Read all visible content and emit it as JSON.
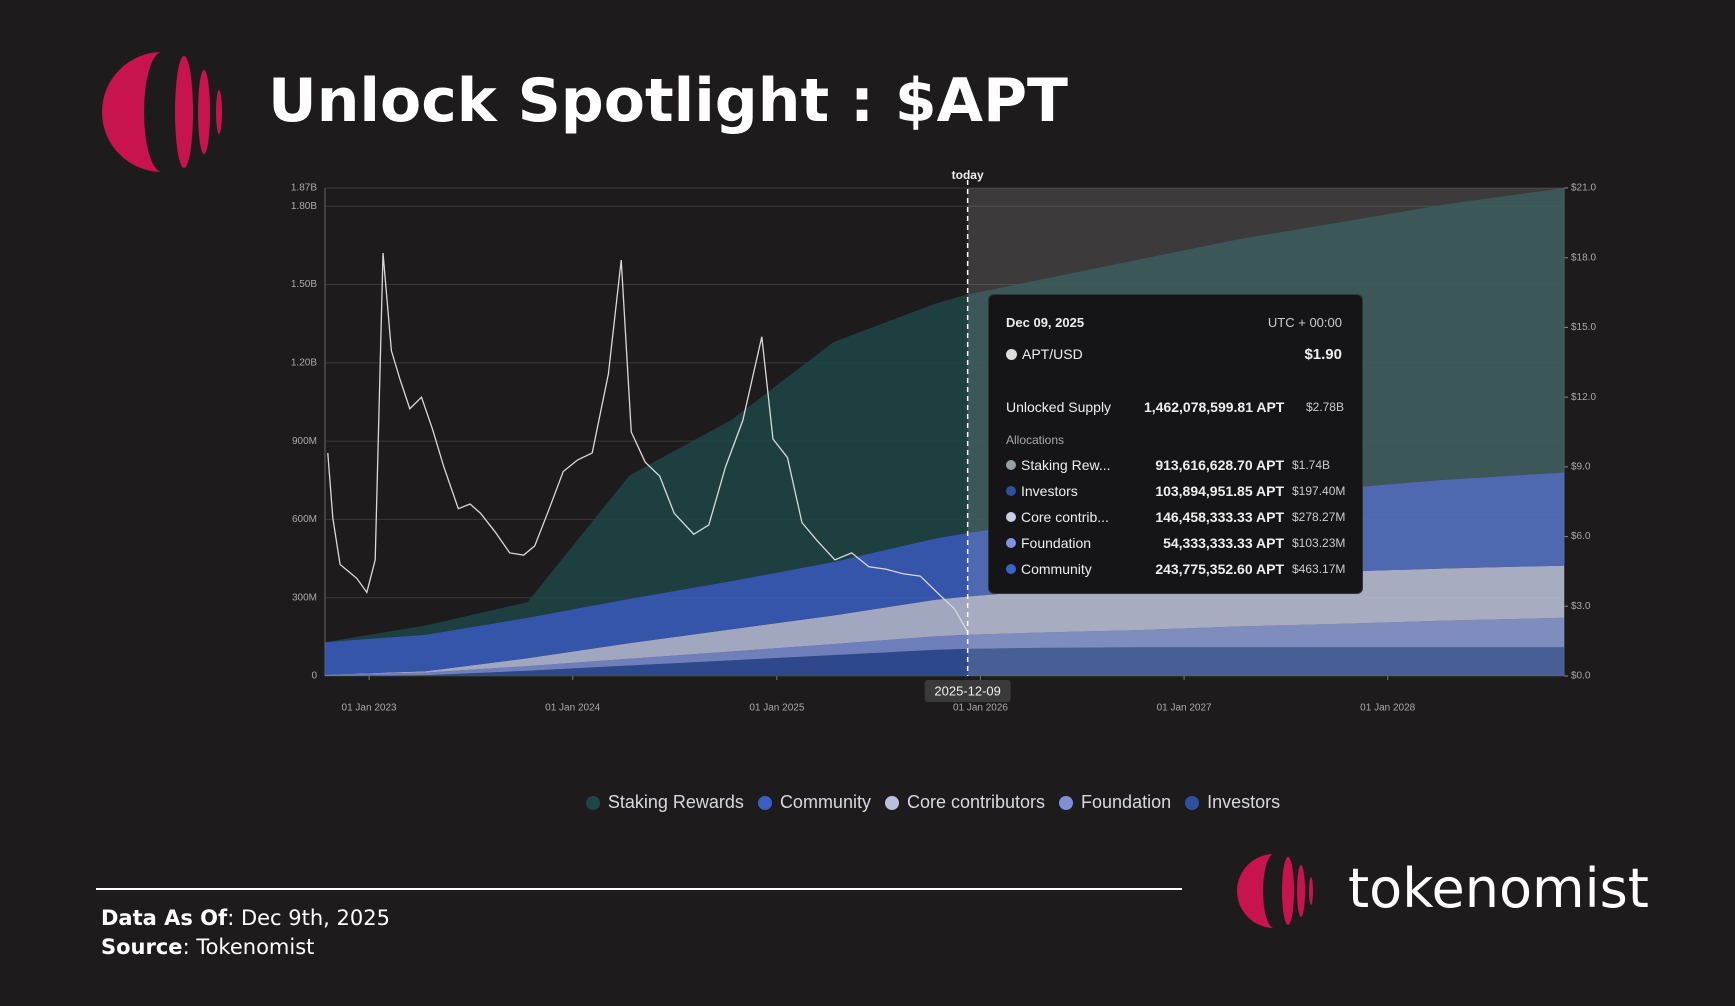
{
  "header": {
    "title": "Unlock Spotlight : $APT"
  },
  "chart_data": {
    "type": "stacked_area",
    "x": [
      "2022-10-14",
      "2023-04-12",
      "2023-10-12",
      "2024-04-12",
      "2024-10-12",
      "2025-04-12",
      "2025-10-12",
      "2025-12-09",
      "2026-04-12",
      "2026-10-12",
      "2027-04-12",
      "2027-10-12",
      "2028-04-12",
      "2028-11-12"
    ],
    "series": [
      {
        "name": "Staking Rewards",
        "color": "#1f4547",
        "values": [
          0,
          35000000,
          60000000,
          473000000,
          618000000,
          842000000,
          900000000,
          913616628.7,
          930000000,
          960000000,
          990000000,
          1020000000,
          1055000000,
          1090000000
        ]
      },
      {
        "name": "Community",
        "color": "#3a5fc4",
        "values": [
          125000000,
          140000000,
          155000000,
          170000000,
          185000000,
          205000000,
          235000000,
          243775352.6,
          260000000,
          280000000,
          300000000,
          320000000,
          340000000,
          357000000
        ]
      },
      {
        "name": "Core contributors",
        "color": "#b9bfdc",
        "values": [
          0,
          5000000,
          30000000,
          60000000,
          85000000,
          110000000,
          140000000,
          146458333.33,
          160000000,
          180000000,
          195000000,
          200000000,
          200000000,
          200000000
        ]
      },
      {
        "name": "Foundation",
        "color": "#7d90d8",
        "values": [
          5000000,
          10000000,
          18000000,
          26000000,
          34000000,
          42000000,
          52000000,
          54333333.33,
          58000000,
          66000000,
          80000000,
          90000000,
          102000000,
          113000000
        ]
      },
      {
        "name": "Investors",
        "color": "#30509f",
        "values": [
          0,
          3000000,
          20000000,
          40000000,
          60000000,
          80000000,
          100000000,
          103894951.85,
          108000000,
          110000000,
          110000000,
          110000000,
          110000000,
          110000000
        ]
      }
    ],
    "price": {
      "name": "APT/USD",
      "color": "#d9d9d9",
      "axis": "y2",
      "x": [
        "2022-10-19",
        "2022-10-28",
        "2022-11-10",
        "2022-11-25",
        "2022-12-10",
        "2022-12-28",
        "2023-01-12",
        "2023-01-26",
        "2023-02-10",
        "2023-02-25",
        "2023-03-15",
        "2023-04-05",
        "2023-04-25",
        "2023-05-15",
        "2023-06-10",
        "2023-07-01",
        "2023-07-20",
        "2023-08-15",
        "2023-09-10",
        "2023-10-05",
        "2023-10-25",
        "2023-11-20",
        "2023-12-15",
        "2024-01-10",
        "2024-02-05",
        "2024-03-05",
        "2024-03-28",
        "2024-04-15",
        "2024-05-10",
        "2024-06-05",
        "2024-07-01",
        "2024-08-05",
        "2024-09-01",
        "2024-10-01",
        "2024-11-01",
        "2024-12-05",
        "2024-12-25",
        "2025-01-20",
        "2025-02-15",
        "2025-03-15",
        "2025-04-15",
        "2025-05-15",
        "2025-06-15",
        "2025-07-15",
        "2025-08-15",
        "2025-09-15",
        "2025-10-15",
        "2025-11-15",
        "2025-12-09"
      ],
      "values": [
        9.6,
        6.8,
        4.8,
        4.5,
        4.2,
        3.6,
        5.0,
        18.2,
        14.0,
        12.8,
        11.5,
        12.0,
        10.6,
        9.0,
        7.2,
        7.4,
        7.0,
        6.2,
        5.3,
        5.2,
        5.6,
        7.2,
        8.8,
        9.3,
        9.6,
        13.0,
        17.9,
        10.5,
        9.2,
        8.6,
        7.0,
        6.1,
        6.5,
        9.0,
        11.0,
        14.6,
        10.2,
        9.4,
        6.6,
        5.8,
        5.0,
        5.3,
        4.7,
        4.6,
        4.4,
        4.3,
        3.6,
        2.9,
        1.9
      ]
    },
    "xlim": [
      "2022-10-14",
      "2028-11-12"
    ],
    "xticks": [
      {
        "value": "2023-01-01",
        "label": "01 Jan 2023"
      },
      {
        "value": "2024-01-01",
        "label": "01 Jan 2024"
      },
      {
        "value": "2025-01-01",
        "label": "01 Jan 2025"
      },
      {
        "value": "2026-01-01",
        "label": "01 Jan 2026"
      },
      {
        "value": "2027-01-01",
        "label": "01 Jan 2027"
      },
      {
        "value": "2028-01-01",
        "label": "01 Jan 2028"
      }
    ],
    "ylim": [
      0,
      1870000000
    ],
    "yticks": [
      0,
      {
        "value": 300000000,
        "label": "300M"
      },
      {
        "value": 600000000,
        "label": "600M"
      },
      {
        "value": 900000000,
        "label": "900M"
      },
      {
        "value": 1200000000,
        "label": "1.20B"
      },
      {
        "value": 1500000000,
        "label": "1.50B"
      },
      {
        "value": 1800000000,
        "label": "1.80B"
      },
      {
        "value": 1870000000,
        "label": "1.87B"
      }
    ],
    "y2lim": [
      0,
      21
    ],
    "y2ticks": [
      {
        "value": 0,
        "label": "$0.0"
      },
      {
        "value": 3,
        "label": "$3.0"
      },
      {
        "value": 6,
        "label": "$6.0"
      },
      {
        "value": 9,
        "label": "$9.0"
      },
      {
        "value": 12,
        "label": "$12.0"
      },
      {
        "value": 15,
        "label": "$15.0"
      },
      {
        "value": 18,
        "label": "$18.0"
      },
      {
        "value": 21,
        "label": "$21.0"
      }
    ],
    "grid": true,
    "today_label": "today",
    "today": "2025-12-09"
  },
  "tooltip": {
    "date": "Dec 09, 2025",
    "timezone": "UTC + 00:00",
    "price_label": "APT/USD",
    "price": "$1.90",
    "supply_label": "Unlocked Supply",
    "supply": "1,462,078,599.81 APT",
    "supply_usd": "$2.78B",
    "allocations_label": "Allocations",
    "rows": [
      {
        "label": "Staking Rew...",
        "amount": "913,616,628.70 APT",
        "usd": "$1.74B",
        "color": "#8fa3a3"
      },
      {
        "label": "Investors",
        "amount": "103,894,951.85 APT",
        "usd": "$197.40M",
        "color": "#30509f"
      },
      {
        "label": "Core contrib...",
        "amount": "146,458,333.33 APT",
        "usd": "$278.27M",
        "color": "#c9cde6"
      },
      {
        "label": "Foundation",
        "amount": "54,333,333.33 APT",
        "usd": "$103.23M",
        "color": "#8195de"
      },
      {
        "label": "Community",
        "amount": "243,775,352.60 APT",
        "usd": "$463.17M",
        "color": "#3a63c8"
      }
    ]
  },
  "footer": {
    "as_of_label": "Data As Of",
    "as_of": ": Dec 9th, 2025",
    "source_label": "Source",
    "source": ": Tokenomist",
    "brand": "tokenomist"
  }
}
